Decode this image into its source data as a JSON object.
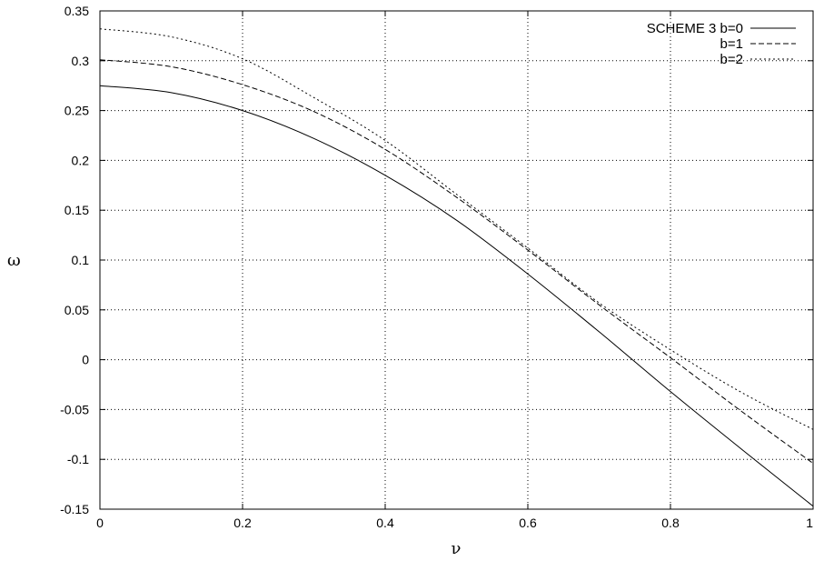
{
  "chart_data": {
    "type": "line",
    "xlabel": "ν",
    "ylabel": "ω",
    "xlim": [
      0,
      1
    ],
    "ylim": [
      -0.15,
      0.35
    ],
    "x_ticks": [
      "0",
      "0.2",
      "0.4",
      "0.6",
      "0.8",
      "1"
    ],
    "y_ticks": [
      "0.35",
      "0.3",
      "0.25",
      "0.2",
      "0.15",
      "0.1",
      "0.05",
      "0",
      "-0.05",
      "-0.1",
      "-0.15"
    ],
    "grid": true,
    "legend_position": "top-right",
    "x": [
      0,
      0.1,
      0.2,
      0.3,
      0.4,
      0.5,
      0.6,
      0.7,
      0.8,
      0.9,
      1.0
    ],
    "series": [
      {
        "name": "SCHEME 3 b=0",
        "dash": "solid",
        "values": [
          0.275,
          0.268,
          0.25,
          0.222,
          0.185,
          0.14,
          0.086,
          0.028,
          -0.032,
          -0.09,
          -0.147
        ]
      },
      {
        "name": "b=1",
        "dash": "dashed",
        "values": [
          0.301,
          0.294,
          0.276,
          0.249,
          0.211,
          0.163,
          0.11,
          0.055,
          0.002,
          -0.052,
          -0.104
        ]
      },
      {
        "name": "b=2",
        "dash": "dotted",
        "values": [
          0.332,
          0.324,
          0.302,
          0.263,
          0.22,
          0.166,
          0.112,
          0.057,
          0.01,
          -0.033,
          -0.07
        ]
      }
    ]
  }
}
